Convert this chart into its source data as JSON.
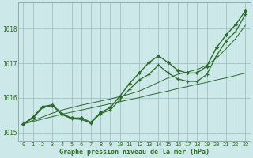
{
  "hours": [
    0,
    1,
    2,
    3,
    4,
    5,
    6,
    7,
    8,
    9,
    10,
    11,
    12,
    13,
    14,
    15,
    16,
    17,
    18,
    19,
    20,
    21,
    22,
    23
  ],
  "pressure_main": [
    1015.25,
    1015.45,
    1015.75,
    1015.8,
    1015.55,
    1015.42,
    1015.42,
    1015.3,
    1015.58,
    1015.72,
    1016.05,
    1016.42,
    1016.72,
    1017.02,
    1017.22,
    1017.02,
    1016.8,
    1016.72,
    1016.72,
    1016.92,
    1017.45,
    1017.82,
    1018.12,
    1018.52
  ],
  "pressure_smooth": [
    1015.25,
    1015.42,
    1015.72,
    1015.78,
    1015.52,
    1015.4,
    1015.38,
    1015.28,
    1015.55,
    1015.65,
    1015.95,
    1016.25,
    1016.52,
    1016.68,
    1016.95,
    1016.72,
    1016.55,
    1016.48,
    1016.48,
    1016.68,
    1017.22,
    1017.65,
    1017.92,
    1018.42
  ],
  "trend_low": [
    1015.25,
    1015.32,
    1015.39,
    1015.46,
    1015.53,
    1015.59,
    1015.65,
    1015.71,
    1015.77,
    1015.83,
    1015.89,
    1015.95,
    1016.01,
    1016.08,
    1016.14,
    1016.2,
    1016.27,
    1016.33,
    1016.39,
    1016.45,
    1016.52,
    1016.58,
    1016.65,
    1016.72
  ],
  "trend_high": [
    1015.25,
    1015.35,
    1015.45,
    1015.56,
    1015.65,
    1015.72,
    1015.79,
    1015.85,
    1015.91,
    1015.97,
    1016.04,
    1016.11,
    1016.2,
    1016.32,
    1016.45,
    1016.58,
    1016.68,
    1016.75,
    1016.82,
    1016.95,
    1017.15,
    1017.42,
    1017.72,
    1018.1
  ],
  "ylim": [
    1014.75,
    1018.75
  ],
  "yticks": [
    1015,
    1016,
    1017,
    1018
  ],
  "xticks": [
    0,
    1,
    2,
    3,
    4,
    5,
    6,
    7,
    8,
    9,
    10,
    11,
    12,
    13,
    14,
    15,
    16,
    17,
    18,
    19,
    20,
    21,
    22,
    23
  ],
  "xlabel": "Graphe pression niveau de la mer (hPa)",
  "line_color": "#2d6a2d",
  "bg_color": "#cce8e8",
  "grid_color": "#99bbbb",
  "text_color": "#2d6a2d",
  "border_color": "#669999"
}
